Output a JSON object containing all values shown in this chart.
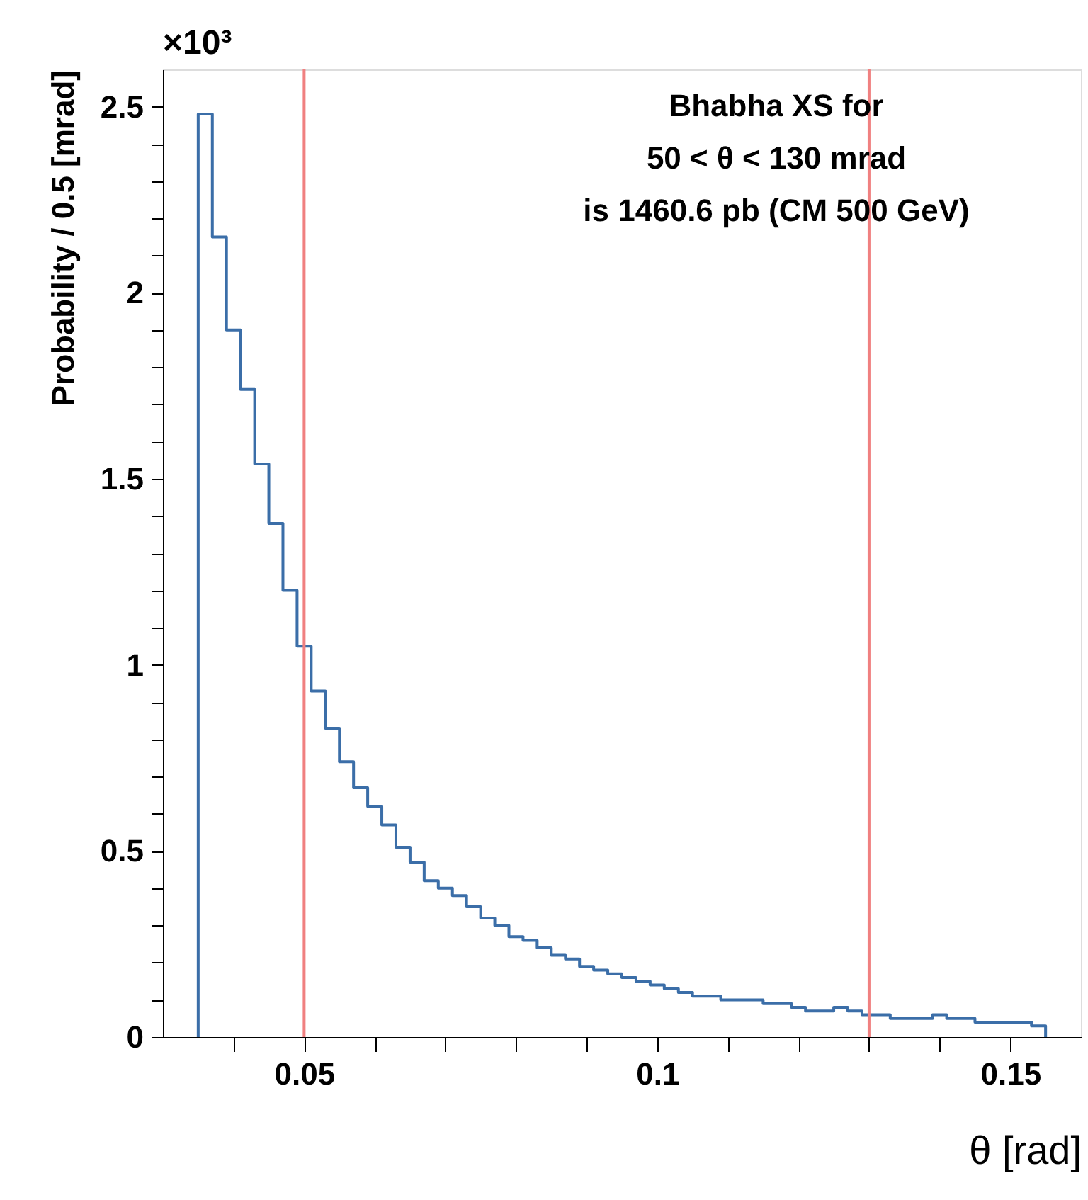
{
  "chart_data": {
    "type": "histogram",
    "xlabel": "θ [rad]",
    "ylabel": "Probability / 0.5 [mrad]",
    "annotations": [
      "×10³",
      "Bhabha XS for",
      "50 < θ < 130 mrad",
      "is 1460.6 pb  (CM 500 GeV)"
    ],
    "color": "#3b6ea8",
    "bins": [
      0.035,
      0.037,
      0.039,
      0.041,
      0.043,
      0.045,
      0.047,
      0.049,
      0.051,
      0.053,
      0.055,
      0.057,
      0.059,
      0.061,
      0.063,
      0.065,
      0.067,
      0.069,
      0.071,
      0.073,
      0.075,
      0.077,
      0.079,
      0.081,
      0.083,
      0.085,
      0.087,
      0.089,
      0.091,
      0.093,
      0.095,
      0.097,
      0.099,
      0.101,
      0.103,
      0.105,
      0.107,
      0.109,
      0.111,
      0.113,
      0.115,
      0.117,
      0.119,
      0.121,
      0.123,
      0.125,
      0.127,
      0.129,
      0.131,
      0.133,
      0.135,
      0.137,
      0.139,
      0.141,
      0.143,
      0.145,
      0.147,
      0.149,
      0.151,
      0.153,
      0.155
    ],
    "values": [
      2.48,
      2.15,
      1.9,
      1.74,
      1.54,
      1.38,
      1.2,
      1.05,
      0.93,
      0.83,
      0.74,
      0.67,
      0.62,
      0.57,
      0.51,
      0.47,
      0.42,
      0.4,
      0.38,
      0.35,
      0.32,
      0.3,
      0.27,
      0.26,
      0.24,
      0.22,
      0.21,
      0.19,
      0.18,
      0.17,
      0.16,
      0.15,
      0.14,
      0.13,
      0.12,
      0.11,
      0.11,
      0.1,
      0.1,
      0.1,
      0.09,
      0.09,
      0.08,
      0.07,
      0.07,
      0.08,
      0.07,
      0.06,
      0.06,
      0.05,
      0.05,
      0.05,
      0.06,
      0.05,
      0.05,
      0.04,
      0.04,
      0.04,
      0.04,
      0.03
    ],
    "xlim": [
      0.03,
      0.16
    ],
    "xticks": [
      {
        "value": 0.04,
        "label": null
      },
      0.05,
      {
        "value": 0.06,
        "label": null
      },
      {
        "value": 0.07,
        "label": null
      },
      {
        "value": 0.08,
        "label": null
      },
      {
        "value": 0.09,
        "label": null
      },
      0.1,
      {
        "value": 0.11,
        "label": null
      },
      {
        "value": 0.12,
        "label": null
      },
      {
        "value": 0.13,
        "label": null
      },
      {
        "value": 0.14,
        "label": null
      },
      0.15
    ],
    "ylim": [
      0,
      2.6
    ],
    "yticks": [
      0,
      {
        "value": 0.1,
        "label": null
      },
      {
        "value": 0.2,
        "label": null
      },
      {
        "value": 0.3,
        "label": null
      },
      {
        "value": 0.4,
        "label": null
      },
      0.5,
      {
        "value": 0.6,
        "label": null
      },
      {
        "value": 0.7,
        "label": null
      },
      {
        "value": 0.8,
        "label": null
      },
      {
        "value": 0.9,
        "label": null
      },
      1,
      {
        "value": 1.1,
        "label": null
      },
      {
        "value": 1.2,
        "label": null
      },
      {
        "value": 1.3,
        "label": null
      },
      {
        "value": 1.4,
        "label": null
      },
      1.5,
      {
        "value": 1.6,
        "label": null
      },
      {
        "value": 1.7,
        "label": null
      },
      {
        "value": 1.8,
        "label": null
      },
      {
        "value": 1.9,
        "label": null
      },
      2,
      {
        "value": 2.1,
        "label": null
      },
      {
        "value": 2.2,
        "label": null
      },
      {
        "value": 2.3,
        "label": null
      },
      {
        "value": 2.4,
        "label": null
      },
      2.5
    ],
    "ref_lines": [
      {
        "axis": "x",
        "value": 0.05,
        "color": "#f08080"
      },
      {
        "axis": "x",
        "value": 0.13,
        "color": "#f08080"
      }
    ],
    "grid": false
  }
}
